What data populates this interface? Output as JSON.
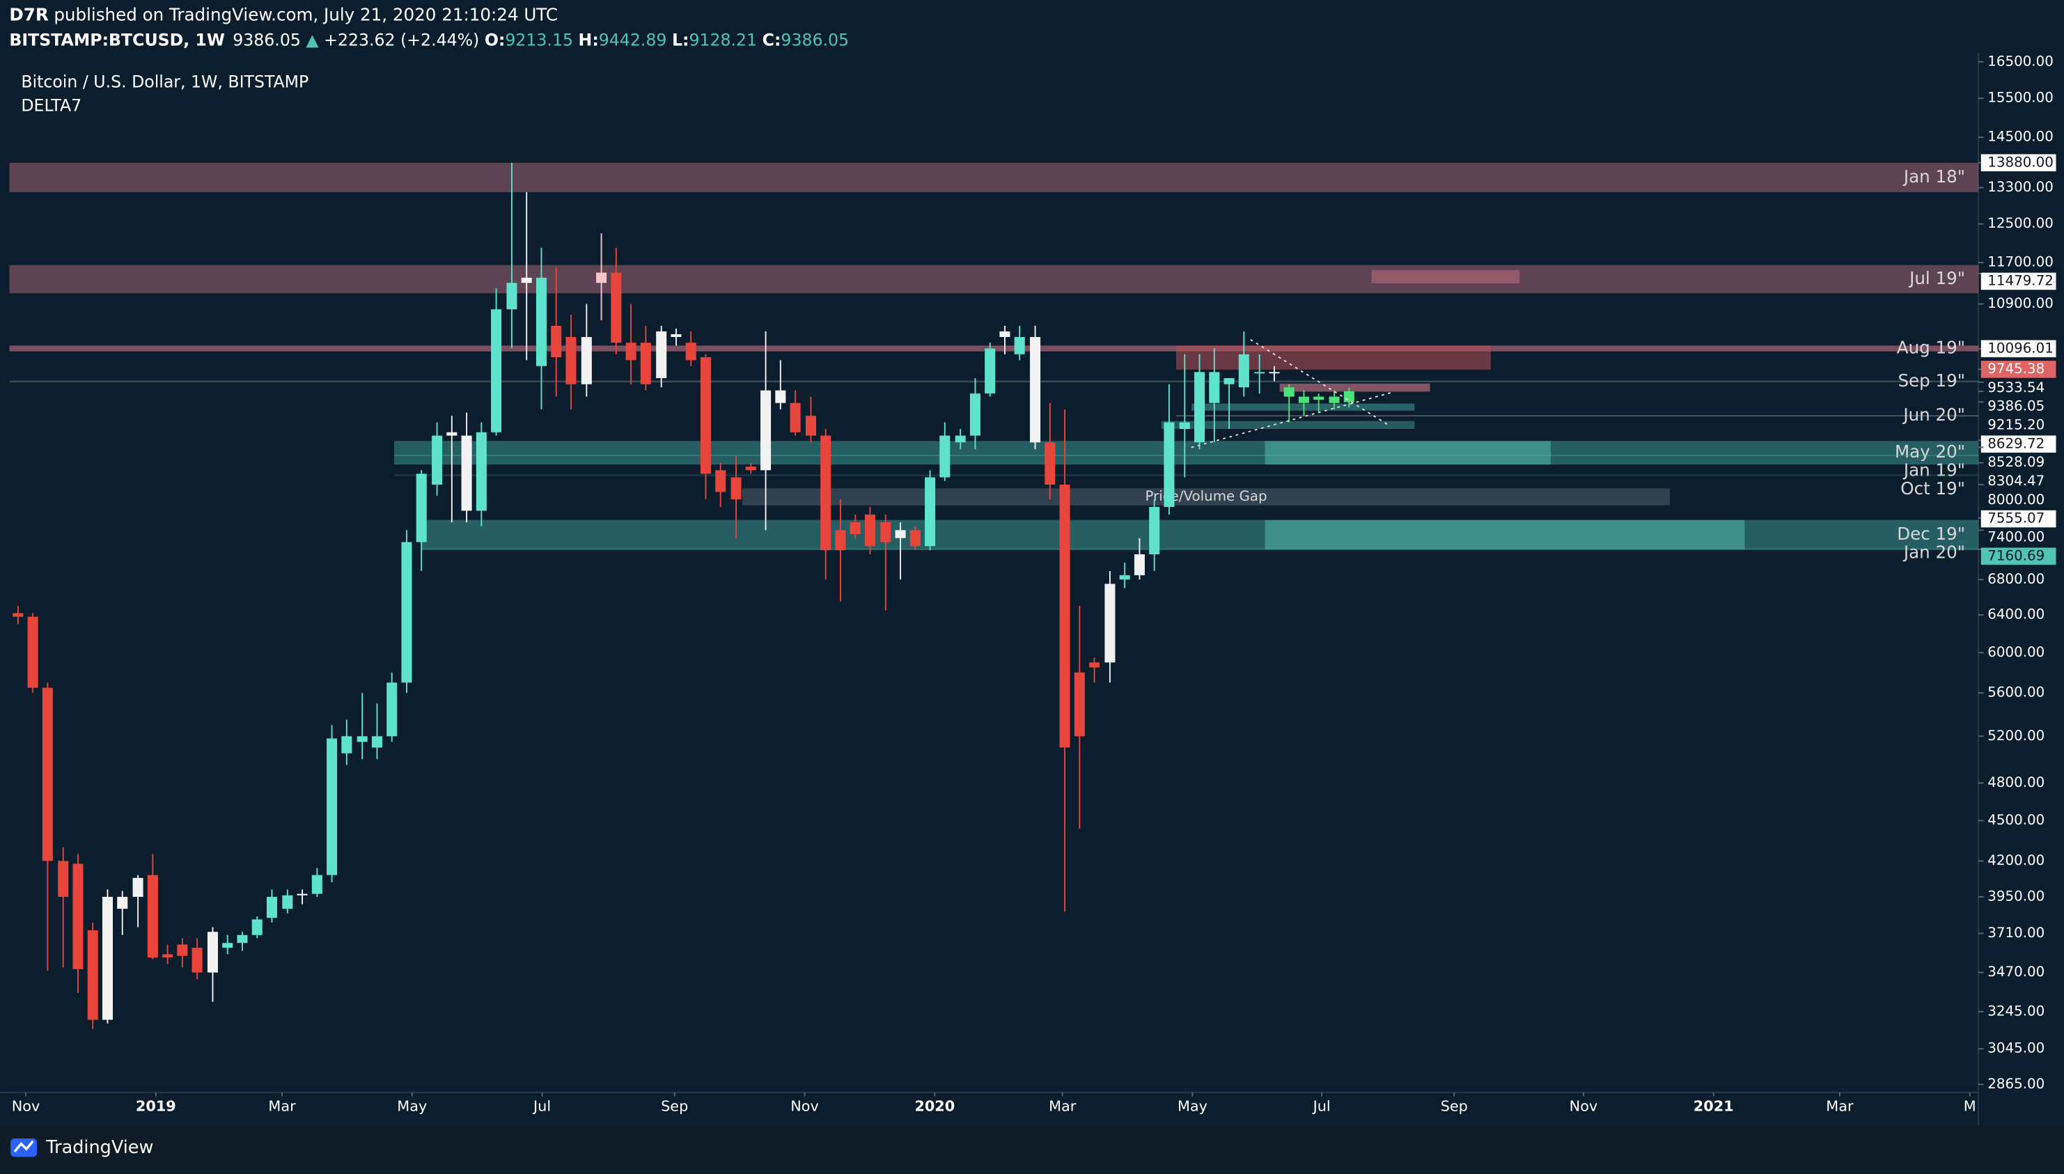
{
  "header": {
    "author": "D7R",
    "published": "published on TradingView.com, July 21, 2020 21:10:24 UTC",
    "symbol": "BITSTAMP:BTCUSD, 1W",
    "change": "+223.62 (+2.44%)",
    "o_label": "O:",
    "h_label": "H:",
    "l_label": "L:",
    "c_label": "C:"
  },
  "footer": {
    "brand": "TradingView"
  },
  "chart_data": {
    "type": "candlestick",
    "title": "Bitcoin / U.S. Dollar, 1W, BITSTAMP",
    "indicator": "DELTA7",
    "log_scale": true,
    "grid": false,
    "x": [
      2018.823,
      2018.842,
      2018.861,
      2018.881,
      2018.9,
      2018.919,
      2018.938,
      2018.957,
      2018.977,
      2018.996,
      2019.015,
      2019.034,
      2019.053,
      2019.073,
      2019.092,
      2019.111,
      2019.13,
      2019.149,
      2019.169,
      2019.188,
      2019.207,
      2019.226,
      2019.245,
      2019.265,
      2019.284,
      2019.303,
      2019.322,
      2019.341,
      2019.361,
      2019.38,
      2019.399,
      2019.418,
      2019.437,
      2019.457,
      2019.476,
      2019.495,
      2019.514,
      2019.533,
      2019.553,
      2019.572,
      2019.591,
      2019.61,
      2019.629,
      2019.649,
      2019.668,
      2019.687,
      2019.706,
      2019.725,
      2019.745,
      2019.764,
      2019.783,
      2019.802,
      2019.821,
      2019.841,
      2019.86,
      2019.879,
      2019.898,
      2019.917,
      2019.937,
      2019.956,
      2019.975,
      2019.994,
      2020.013,
      2020.033,
      2020.052,
      2020.071,
      2020.09,
      2020.109,
      2020.129,
      2020.148,
      2020.167,
      2020.186,
      2020.205,
      2020.225,
      2020.244,
      2020.263,
      2020.282,
      2020.301,
      2020.321,
      2020.34,
      2020.359,
      2020.378,
      2020.397,
      2020.417,
      2020.436,
      2020.455,
      2020.474,
      2020.493,
      2020.513,
      2020.532
    ],
    "open": [
      6420,
      6380,
      5650,
      4200,
      4180,
      3730,
      3200,
      3870,
      3950,
      4100,
      3580,
      3640,
      3620,
      3470,
      3620,
      3650,
      3700,
      3810,
      3870,
      3960,
      3970,
      4100,
      5050,
      5150,
      5100,
      5200,
      5700,
      7250,
      8000,
      8700,
      8700,
      7650,
      8750,
      10800,
      11300,
      9800,
      10500,
      10300,
      9500,
      11300,
      11500,
      10200,
      10200,
      9600,
      10300,
      10200,
      9950,
      8200,
      8100,
      8250,
      8200,
      9400,
      9200,
      9000,
      8700,
      7400,
      7500,
      7600,
      7500,
      7400,
      7400,
      7200,
      8100,
      8600,
      8700,
      9350,
      10300,
      10000,
      10300,
      8600,
      8000,
      5800,
      5900,
      5900,
      6800,
      6850,
      7100,
      7700,
      8900,
      8600,
      9200,
      9500,
      9450,
      9700,
      9700,
      9300,
      9200,
      9300,
      9200,
      9213.15
    ],
    "high": [
      6500,
      6420,
      5700,
      4300,
      4250,
      3780,
      4000,
      3990,
      4100,
      4250,
      3640,
      3680,
      3680,
      3750,
      3700,
      3720,
      3820,
      4000,
      4000,
      4000,
      4150,
      5300,
      5350,
      5600,
      5500,
      5800,
      7400,
      8200,
      8900,
      9000,
      9050,
      8900,
      11200,
      13880,
      13200,
      12000,
      11600,
      10700,
      10900,
      12300,
      12000,
      10900,
      10500,
      10500,
      10450,
      10400,
      10000,
      8300,
      8400,
      8300,
      10400,
      9900,
      9400,
      9300,
      8800,
      7800,
      7600,
      7700,
      7600,
      7500,
      7450,
      8200,
      8900,
      8800,
      9600,
      10200,
      10500,
      10500,
      10500,
      9200,
      9100,
      6500,
      5950,
      6900,
      7000,
      7300,
      7800,
      9500,
      10000,
      10000,
      10100,
      9600,
      10400,
      10000,
      9800,
      9500,
      9400,
      9350,
      9400,
      9442.89
    ],
    "low": [
      6300,
      5600,
      3480,
      3500,
      3350,
      3150,
      3180,
      3700,
      3750,
      3550,
      3520,
      3500,
      3430,
      3300,
      3580,
      3600,
      3680,
      3780,
      3840,
      3900,
      3950,
      4050,
      4950,
      5000,
      5000,
      5150,
      5600,
      6900,
      7850,
      7500,
      7500,
      7450,
      8700,
      10100,
      9900,
      9100,
      9300,
      9100,
      9300,
      10600,
      10000,
      9500,
      9400,
      9450,
      10150,
      9800,
      7800,
      7700,
      7300,
      8150,
      7400,
      9100,
      8700,
      8600,
      6800,
      6550,
      7300,
      7100,
      6450,
      6800,
      7150,
      7150,
      8050,
      8500,
      8500,
      9300,
      10000,
      9900,
      8500,
      7800,
      3850,
      4440,
      5700,
      5700,
      6700,
      6800,
      6900,
      7600,
      8100,
      8500,
      8600,
      8800,
      9300,
      9350,
      9550,
      8900,
      9000,
      9050,
      9100,
      9128.21
    ],
    "close": [
      6380,
      5650,
      4200,
      3950,
      3490,
      3200,
      3950,
      3950,
      4080,
      3560,
      3560,
      3570,
      3470,
      3720,
      3650,
      3700,
      3800,
      3950,
      3960,
      3970,
      4100,
      5180,
      5200,
      5200,
      5200,
      5700,
      7250,
      8150,
      8700,
      8750,
      7650,
      8750,
      10800,
      11300,
      11400,
      11400,
      9950,
      9500,
      10300,
      11500,
      10200,
      9900,
      9500,
      10400,
      10350,
      9900,
      8150,
      7900,
      7800,
      8200,
      9400,
      9200,
      8750,
      8700,
      7150,
      7150,
      7350,
      7200,
      7250,
      7300,
      7200,
      8100,
      8700,
      8700,
      9350,
      10100,
      10400,
      10300,
      8600,
      8000,
      5100,
      5200,
      5850,
      6750,
      6850,
      7100,
      7700,
      8900,
      8800,
      9700,
      9700,
      9600,
      10000,
      9700,
      9680,
      9450,
      9300,
      9250,
      9300,
      9386.05
    ],
    "colors": [
      "#e8463d",
      "#e8463d",
      "#e8463d",
      "#e8463d",
      "#e8463d",
      "#e8463d",
      "#f2f2f2",
      "#f2f2f2",
      "#f2f2f2",
      "#e8463d",
      "#e8463d",
      "#e8463d",
      "#e8463d",
      "#f2f2f2",
      "#5fe3cd",
      "#5fe3cd",
      "#5fe3cd",
      "#5fe3cd",
      "#5fe3cd",
      "#f2f2f2",
      "#5fe3cd",
      "#5fe3cd",
      "#5fe3cd",
      "#5fe3cd",
      "#5fe3cd",
      "#5fe3cd",
      "#5fe3cd",
      "#5fe3cd",
      "#5fe3cd",
      "#f2f2f2",
      "#f2f2f2",
      "#5fe3cd",
      "#5fe3cd",
      "#5fe3cd",
      "#f2f2f2",
      "#5fe3cd",
      "#e8463d",
      "#e8463d",
      "#f2f2f2",
      "#f5c5cb",
      "#e8463d",
      "#e8463d",
      "#e8463d",
      "#f2f2f2",
      "#f2f2f2",
      "#e8463d",
      "#e8463d",
      "#e8463d",
      "#e8463d",
      "#e8463d",
      "#f2f2f2",
      "#f2f2f2",
      "#e8463d",
      "#e8463d",
      "#e8463d",
      "#e8463d",
      "#e8463d",
      "#e8463d",
      "#e8463d",
      "#f2f2f2",
      "#e8463d",
      "#5fe3cd",
      "#5fe3cd",
      "#5fe3cd",
      "#5fe3cd",
      "#5fe3cd",
      "#f2f2f2",
      "#5fe3cd",
      "#f2f2f2",
      "#e8463d",
      "#e8463d",
      "#e8463d",
      "#e8463d",
      "#f2f2f2",
      "#5fe3cd",
      "#f2f2f2",
      "#5fe3cd",
      "#5fe3cd",
      "#5fe3cd",
      "#5fe3cd",
      "#5fe3cd",
      "#5fe3cd",
      "#5fe3cd",
      "#5fe3cd",
      "#f2f2f2",
      "#4ee07a",
      "#4ee07a",
      "#4ee07a",
      "#4ee07a",
      "#4ee07a"
    ],
    "xlim": [
      2018.8,
      2021.34
    ],
    "xticks": [
      {
        "value": 2018.833,
        "label": "Nov"
      },
      {
        "value": 2019,
        "label": "2019"
      },
      {
        "value": 2019.162,
        "label": "Mar"
      },
      {
        "value": 2019.329,
        "label": "May"
      },
      {
        "value": 2019.496,
        "label": "Jul"
      },
      {
        "value": 2019.666,
        "label": "Sep"
      },
      {
        "value": 2019.833,
        "label": "Nov"
      },
      {
        "value": 2020,
        "label": "2020"
      },
      {
        "value": 2020.164,
        "label": "Mar"
      },
      {
        "value": 2020.331,
        "label": "May"
      },
      {
        "value": 2020.497,
        "label": "Jul"
      },
      {
        "value": 2020.667,
        "label": "Sep"
      },
      {
        "value": 2020.833,
        "label": "Nov"
      },
      {
        "value": 2021,
        "label": "2021"
      },
      {
        "value": 2021.162,
        "label": "Mar"
      },
      {
        "value": 2021.329,
        "label": "M"
      }
    ],
    "ylim": [
      2826,
      16760
    ],
    "yticks": [
      {
        "value": 16500,
        "label": "16500.00"
      },
      {
        "value": 15500,
        "label": "15500.00"
      },
      {
        "value": 14500,
        "label": "14500.00"
      },
      {
        "value": 13300,
        "label": "13300.00"
      },
      {
        "value": 12500,
        "label": "12500.00"
      },
      {
        "value": 11700,
        "label": "11700.00"
      },
      {
        "value": 10900,
        "label": "10900.00"
      },
      {
        "value": 8000,
        "label": "8000.00"
      },
      {
        "value": 7400,
        "label": "7400.00"
      },
      {
        "value": 6800,
        "label": "6800.00"
      },
      {
        "value": 6400,
        "label": "6400.00"
      },
      {
        "value": 6000,
        "label": "6000.00"
      },
      {
        "value": 5600,
        "label": "5600.00"
      },
      {
        "value": 5200,
        "label": "5200.00"
      },
      {
        "value": 4800,
        "label": "4800.00"
      },
      {
        "value": 4500,
        "label": "4500.00"
      },
      {
        "value": 4200,
        "label": "4200.00"
      },
      {
        "value": 3950,
        "label": "3950.00"
      },
      {
        "value": 3710,
        "label": "3710.00"
      },
      {
        "value": 3470,
        "label": "3470.00"
      },
      {
        "value": 3245,
        "label": "3245.00"
      },
      {
        "value": 3045,
        "label": "3045.00"
      },
      {
        "value": 2865,
        "label": "2865.00"
      }
    ],
    "price_tags": [
      {
        "value": 13880,
        "label": "13880.00",
        "bg": "#ffffff",
        "color": "#131722"
      },
      {
        "value": 11479.72,
        "label": "11479.72",
        "bg": "#ffffff",
        "color": "#131722"
      },
      {
        "value": 10096.01,
        "label": "10096.01",
        "bg": "#ffffff",
        "color": "#131722"
      },
      {
        "value": 9745.38,
        "label": "9745.38",
        "bg": "#e06464",
        "color": "#ffffff"
      },
      {
        "value": 9533.54,
        "label": "9533.54",
        "bg": "none",
        "color": "#ffffff"
      },
      {
        "value": 9386.05,
        "label": "9386.05",
        "bg": "none",
        "color": "#ffffff"
      },
      {
        "value": 9215.2,
        "label": "9215.20",
        "bg": "none",
        "color": "#ffffff"
      },
      {
        "value": 8629.72,
        "label": "8629.72",
        "bg": "#ffffff",
        "color": "#131722"
      },
      {
        "value": 8528.09,
        "label": "8528.09",
        "bg": "none",
        "color": "#ffffff"
      },
      {
        "value": 8304.47,
        "label": "8304.47",
        "bg": "none",
        "color": "#ffffff"
      },
      {
        "value": 7555.07,
        "label": "7555.07",
        "bg": "#ffffff",
        "color": "#131722"
      },
      {
        "value": 7160.69,
        "label": "7160.69",
        "bg": "#4fc3b4",
        "color": "#131722"
      }
    ],
    "zones": [
      {
        "name": "Jan 18\"",
        "x0": 2018.812,
        "x1": 2021.34,
        "low": 13200,
        "high": 13880,
        "color": "rgba(196,112,128,0.45)"
      },
      {
        "name": "Jul 19\"",
        "x0": 2018.812,
        "x1": 2021.34,
        "low": 11100,
        "high": 11650,
        "color": "rgba(196,112,128,0.45)"
      },
      {
        "name": "Aug 19\"",
        "x0": 2018.812,
        "x1": 2021.34,
        "low": 10050,
        "high": 10150,
        "color": "rgba(196,112,128,0.6)"
      },
      {
        "name": "Sep 19\"",
        "x0": 2018.812,
        "x1": 2021.34,
        "low": 9530,
        "high": 9560,
        "color": "rgba(200,200,200,0.25)"
      },
      {
        "name": "Jun 20\"",
        "x0": 2020.31,
        "x1": 2021.34,
        "low": 8990,
        "high": 9010,
        "color": "rgba(200,200,200,0.35)"
      },
      {
        "name": "May 20\"",
        "x0": 2019.306,
        "x1": 2021.34,
        "low": 8280,
        "high": 8620,
        "color": "rgba(80,190,180,0.4)"
      },
      {
        "name": "Jan 19\"",
        "x0": 2019.306,
        "x1": 2021.34,
        "low": 8400,
        "high": 8420,
        "color": "rgba(80,190,180,0.3)"
      },
      {
        "name": "Oct 19\"",
        "x0": 2019.306,
        "x1": 2021.34,
        "low": 8120,
        "high": 8140,
        "color": "rgba(80,190,180,0.2)"
      },
      {
        "name": "Dec 19\"",
        "x0": 2019.34,
        "x1": 2021.34,
        "low": 7160,
        "high": 7530,
        "color": "rgba(80,190,180,0.4)"
      },
      {
        "name": "Jan 20\"",
        "x0": 2019.34,
        "x1": 2021.34,
        "low": 7150,
        "high": 7170,
        "color": "rgba(80,190,180,0.3)"
      }
    ],
    "gap": {
      "label": "Price/Volume Gap",
      "x0": 2019.753,
      "x1": 2020.944,
      "low": 7720,
      "high": 7950,
      "color": "rgba(140,150,160,0.3)"
    },
    "boxes": [
      {
        "x0": 2020.424,
        "x1": 2020.791,
        "low": 8280,
        "high": 8620,
        "color": "rgba(90,205,190,0.45)"
      },
      {
        "x0": 2020.424,
        "x1": 2021.04,
        "low": 7160,
        "high": 7530,
        "color": "rgba(90,205,190,0.45)"
      },
      {
        "x0": 2020.561,
        "x1": 2020.751,
        "low": 11290,
        "high": 11550,
        "color": "rgba(210,120,135,0.45)"
      },
      {
        "x0": 2020.31,
        "x1": 2020.714,
        "low": 9740,
        "high": 10150,
        "color": "rgba(180,80,90,0.55)"
      },
      {
        "x0": 2020.443,
        "x1": 2020.636,
        "low": 9380,
        "high": 9510,
        "color": "rgba(210,120,135,0.6)"
      },
      {
        "x0": 2020.33,
        "x1": 2020.616,
        "low": 9080,
        "high": 9190,
        "color": "rgba(90,205,190,0.4)"
      },
      {
        "x0": 2020.291,
        "x1": 2020.616,
        "low": 8800,
        "high": 8920,
        "color": "rgba(90,205,190,0.35)"
      }
    ]
  }
}
